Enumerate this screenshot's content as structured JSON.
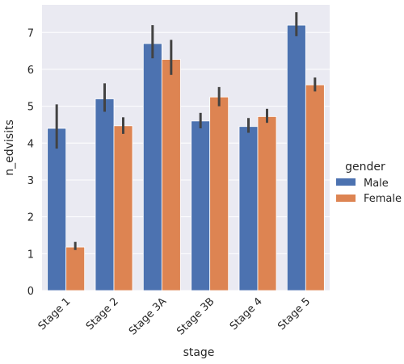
{
  "chart_data": {
    "type": "bar",
    "xlabel": "stage",
    "ylabel": "n_edvisits",
    "categories": [
      "Stage 1",
      "Stage 2",
      "Stage 3A",
      "Stage 3B",
      "Stage 4",
      "Stage 5"
    ],
    "ylim": [
      0,
      7.75
    ],
    "yticks": [
      0,
      1,
      2,
      3,
      4,
      5,
      6,
      7
    ],
    "grid": true,
    "legend": {
      "title": "gender",
      "placement": "right"
    },
    "series": [
      {
        "name": "Male",
        "color": "#4c72b0",
        "values": [
          4.4,
          5.2,
          6.7,
          4.6,
          4.45,
          7.2
        ],
        "ci": [
          [
            3.85,
            5.05
          ],
          [
            4.85,
            5.62
          ],
          [
            6.3,
            7.2
          ],
          [
            4.4,
            4.82
          ],
          [
            4.28,
            4.68
          ],
          [
            6.9,
            7.55
          ]
        ]
      },
      {
        "name": "Female",
        "color": "#dd8452",
        "values": [
          1.18,
          4.47,
          6.27,
          5.25,
          4.72,
          5.58
        ],
        "ci": [
          [
            1.1,
            1.32
          ],
          [
            4.25,
            4.7
          ],
          [
            5.85,
            6.8
          ],
          [
            5.0,
            5.52
          ],
          [
            4.55,
            4.93
          ],
          [
            5.4,
            5.78
          ]
        ]
      }
    ]
  }
}
